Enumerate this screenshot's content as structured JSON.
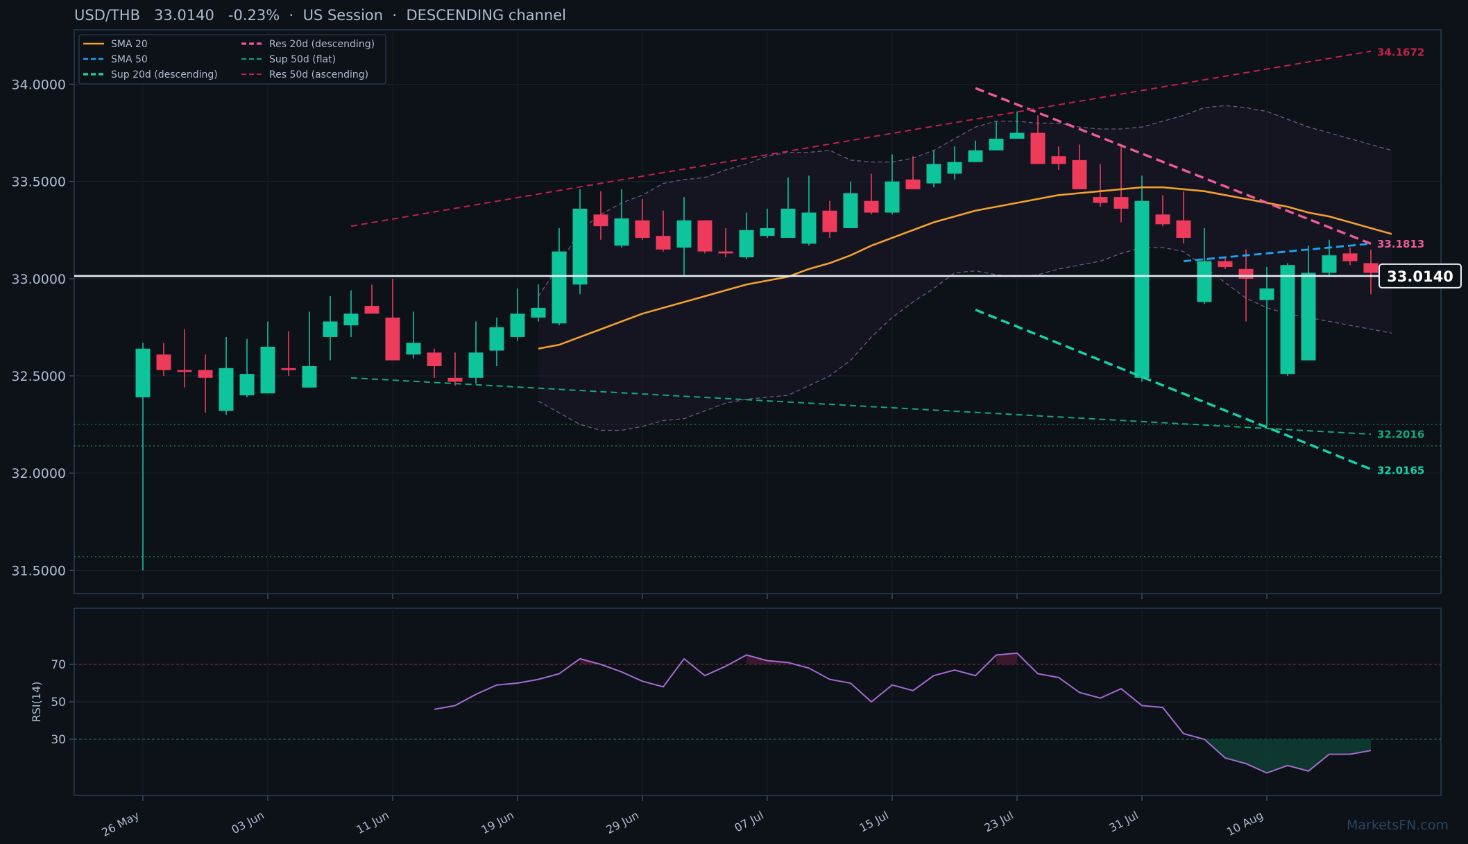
{
  "header": {
    "pair": "USD/THB",
    "price": "33.0140",
    "change": "-0.23%",
    "session": "US Session",
    "channel": "DESCENDING channel"
  },
  "watermark": "MarketsFN.com",
  "colors": {
    "background": "#0d1118",
    "up": "#0ec49a",
    "down": "#ef3b5b",
    "sma20": "#f2a12e",
    "sma50": "#1aa6f0",
    "res20": "#ee5b98",
    "sup20": "#13d6a8",
    "sup50": "#16a777",
    "res50": "#c1224a",
    "rsi": "#a56bd0",
    "bollinger": "#6d5a86"
  },
  "chart_data": {
    "type": "candlestick",
    "x_labels": [
      "26 May",
      "03 Jun",
      "11 Jun",
      "19 Jun",
      "29 Jun",
      "07 Jul",
      "15 Jul",
      "23 Jul",
      "31 Jul",
      "10 Aug"
    ],
    "x_label_indices": [
      0,
      6,
      12,
      18,
      24,
      30,
      36,
      42,
      48,
      54
    ],
    "y_ticks": [
      "31.5000",
      "32.0000",
      "32.5000",
      "33.0000",
      "33.5000",
      "34.0000"
    ],
    "ylim": [
      31.38,
      34.28
    ],
    "candles": [
      [
        32.39,
        32.67,
        31.5,
        32.64
      ],
      [
        32.61,
        32.67,
        32.5,
        32.53
      ],
      [
        32.53,
        32.74,
        32.44,
        32.52
      ],
      [
        32.53,
        32.61,
        32.31,
        32.49
      ],
      [
        32.32,
        32.7,
        32.3,
        32.54
      ],
      [
        32.4,
        32.69,
        32.39,
        32.51
      ],
      [
        32.41,
        32.78,
        32.41,
        32.65
      ],
      [
        32.54,
        32.73,
        32.5,
        32.53
      ],
      [
        32.44,
        32.83,
        32.44,
        32.55
      ],
      [
        32.7,
        32.91,
        32.58,
        32.78
      ],
      [
        32.76,
        32.94,
        32.7,
        32.82
      ],
      [
        32.86,
        32.97,
        32.82,
        32.82
      ],
      [
        32.8,
        33.0,
        32.58,
        32.58
      ],
      [
        32.61,
        32.83,
        32.59,
        32.67
      ],
      [
        32.62,
        32.64,
        32.49,
        32.55
      ],
      [
        32.49,
        32.62,
        32.45,
        32.47
      ],
      [
        32.49,
        32.78,
        32.46,
        32.62
      ],
      [
        32.63,
        32.8,
        32.55,
        32.75
      ],
      [
        32.7,
        32.95,
        32.68,
        32.82
      ],
      [
        32.8,
        32.97,
        32.78,
        32.85
      ],
      [
        32.77,
        33.26,
        32.76,
        33.14
      ],
      [
        32.97,
        33.46,
        32.92,
        33.36
      ],
      [
        33.33,
        33.45,
        33.2,
        33.27
      ],
      [
        33.17,
        33.46,
        33.16,
        33.31
      ],
      [
        33.3,
        33.41,
        33.2,
        33.21
      ],
      [
        33.22,
        33.35,
        33.14,
        33.15
      ],
      [
        33.16,
        33.42,
        33.02,
        33.3
      ],
      [
        33.3,
        33.3,
        33.13,
        33.14
      ],
      [
        33.14,
        33.26,
        33.11,
        33.13
      ],
      [
        33.11,
        33.34,
        33.1,
        33.25
      ],
      [
        33.22,
        33.36,
        33.21,
        33.26
      ],
      [
        33.21,
        33.52,
        33.21,
        33.36
      ],
      [
        33.18,
        33.53,
        33.17,
        33.34
      ],
      [
        33.35,
        33.4,
        33.21,
        33.24
      ],
      [
        33.26,
        33.5,
        33.26,
        33.44
      ],
      [
        33.4,
        33.54,
        33.33,
        33.34
      ],
      [
        33.34,
        33.64,
        33.33,
        33.5
      ],
      [
        33.51,
        33.63,
        33.46,
        33.46
      ],
      [
        33.49,
        33.66,
        33.47,
        33.59
      ],
      [
        33.54,
        33.68,
        33.51,
        33.6
      ],
      [
        33.6,
        33.71,
        33.6,
        33.66
      ],
      [
        33.66,
        33.81,
        33.66,
        33.72
      ],
      [
        33.72,
        33.86,
        33.72,
        33.75
      ],
      [
        33.75,
        33.84,
        33.59,
        33.59
      ],
      [
        33.63,
        33.68,
        33.56,
        33.59
      ],
      [
        33.61,
        33.69,
        33.46,
        33.46
      ],
      [
        33.42,
        33.59,
        33.37,
        33.39
      ],
      [
        33.42,
        33.68,
        33.29,
        33.36
      ],
      [
        32.49,
        33.53,
        32.47,
        33.4
      ],
      [
        33.33,
        33.43,
        33.27,
        33.28
      ],
      [
        33.3,
        33.45,
        33.18,
        33.21
      ],
      [
        32.88,
        33.26,
        32.87,
        33.09
      ],
      [
        33.09,
        33.11,
        33.05,
        33.06
      ],
      [
        33.05,
        33.15,
        32.78,
        33.0
      ],
      [
        32.89,
        33.06,
        32.24,
        32.95
      ],
      [
        32.51,
        33.08,
        32.5,
        33.07
      ],
      [
        32.58,
        33.17,
        32.58,
        33.03
      ],
      [
        33.03,
        33.2,
        33.01,
        33.12
      ],
      [
        33.13,
        33.16,
        33.07,
        33.09
      ],
      [
        33.08,
        33.15,
        32.92,
        33.03
      ]
    ],
    "sma20": {
      "start_index": 19,
      "values": [
        32.64,
        32.66,
        32.7,
        32.74,
        32.78,
        32.82,
        32.85,
        32.88,
        32.91,
        32.94,
        32.97,
        32.99,
        33.01,
        33.05,
        33.08,
        33.12,
        33.17,
        33.21,
        33.25,
        33.29,
        33.32,
        33.35,
        33.37,
        33.39,
        33.41,
        33.43,
        33.44,
        33.45,
        33.46,
        33.47,
        33.47,
        33.46,
        33.45,
        33.43,
        33.41,
        33.39,
        33.37,
        33.34,
        33.32,
        33.29,
        33.26,
        33.23
      ]
    },
    "bollinger": {
      "start_index": 19,
      "upper": [
        32.91,
        33.07,
        33.25,
        33.33,
        33.39,
        33.43,
        33.49,
        33.51,
        33.52,
        33.56,
        33.59,
        33.63,
        33.65,
        33.65,
        33.66,
        33.61,
        33.6,
        33.6,
        33.62,
        33.66,
        33.72,
        33.78,
        33.81,
        33.81,
        33.8,
        33.8,
        33.78,
        33.77,
        33.77,
        33.78,
        33.81,
        33.84,
        33.88,
        33.89,
        33.88,
        33.86,
        33.82,
        33.78,
        33.75,
        33.72,
        33.69,
        33.66
      ],
      "lower": [
        32.37,
        32.31,
        32.25,
        32.22,
        32.22,
        32.24,
        32.27,
        32.28,
        32.32,
        32.36,
        32.38,
        32.39,
        32.4,
        32.45,
        32.5,
        32.58,
        32.7,
        32.8,
        32.88,
        32.95,
        33.03,
        33.04,
        33.02,
        33.01,
        33.02,
        33.05,
        33.07,
        33.09,
        33.13,
        33.16,
        33.16,
        33.14,
        33.06,
        32.98,
        32.9,
        32.85,
        32.82,
        32.8,
        32.78,
        32.76,
        32.74,
        32.72
      ]
    },
    "lines": [
      {
        "name": "Res 20d (descending)",
        "start": [
          40,
          33.98
        ],
        "end": [
          59,
          33.18
        ]
      },
      {
        "name": "Sup 20d (descending)",
        "start": [
          40,
          32.84
        ],
        "end": [
          59,
          32.02
        ]
      },
      {
        "name": "Sup 50d (flat)",
        "start": [
          10,
          32.49
        ],
        "end": [
          59,
          32.2
        ]
      },
      {
        "name": "Res 50d (ascending)",
        "start": [
          10,
          33.27
        ],
        "end": [
          59,
          34.17
        ]
      },
      {
        "name": "SMA 50",
        "start": [
          50,
          33.09
        ],
        "end": [
          59,
          33.18
        ]
      }
    ],
    "hlines": [
      32.25,
      32.14,
      31.57
    ],
    "last_price": 33.014,
    "price_tags": [
      {
        "label": "34.1672",
        "value": 34.1672,
        "color": "#c1224a"
      },
      {
        "label": "33.1813",
        "value": 33.1813,
        "color": "#ee5b98"
      },
      {
        "label": "32.2016",
        "value": 32.2016,
        "color": "#16a777"
      },
      {
        "label": "32.0165",
        "value": 32.0165,
        "color": "#13d6a8"
      }
    ],
    "last_price_label": "33.0140",
    "legend": [
      "SMA 20",
      "SMA 50",
      "Sup 20d (descending)",
      "Res 20d (descending)",
      "Sup 50d (flat)",
      "Res 50d (ascending)"
    ],
    "rsi": {
      "label": "RSI(14)",
      "start_index": 14,
      "y_ticks": [
        "30",
        "50",
        "70"
      ],
      "values": [
        46,
        48,
        54,
        59,
        60,
        62,
        65,
        73,
        70,
        66,
        61,
        58,
        73,
        64,
        69,
        75,
        72,
        71,
        68,
        62,
        60,
        50,
        59,
        56,
        64,
        67,
        64,
        75,
        76,
        65,
        63,
        55,
        52,
        57,
        48,
        47,
        33,
        30,
        20,
        17,
        12,
        16,
        13,
        22,
        22,
        24
      ],
      "overbought": 70,
      "oversold": 30
    }
  }
}
